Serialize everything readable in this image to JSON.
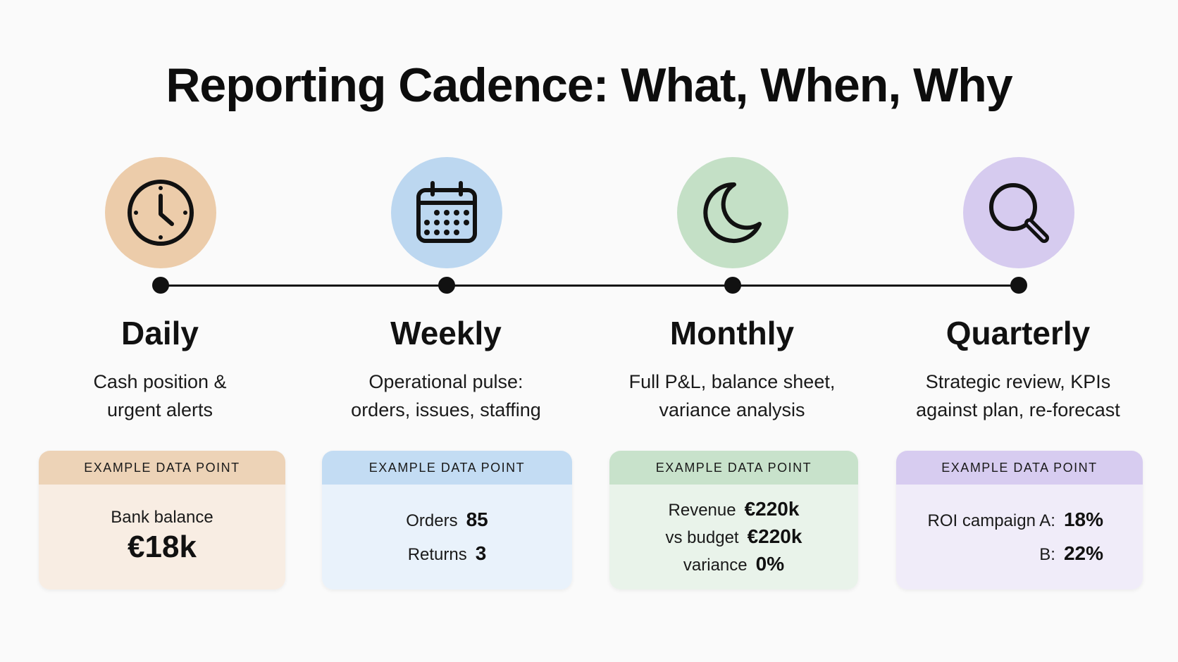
{
  "title": "Reporting Cadence: What, When, Why",
  "colors": {
    "daily_circle": "#ecccaa",
    "daily_head": "#edd3b7",
    "daily_body": "#f8ede3",
    "weekly_circle": "#bcd7f0",
    "weekly_head": "#c3dcf3",
    "weekly_body": "#e9f2fb",
    "monthly_circle": "#c4e0c6",
    "monthly_head": "#c8e2cb",
    "monthly_body": "#e9f3ea",
    "quarterly_circle": "#d6cbef",
    "quarterly_head": "#d7ccf0",
    "quarterly_body": "#f0ecf9",
    "line": "#111111"
  },
  "stages": {
    "daily": {
      "icon": "clock-icon",
      "heading": "Daily",
      "desc_line1": "Cash position &",
      "desc_line2": "urgent alerts",
      "card_header": "EXAMPLE DATA POINT",
      "label": "Bank balance",
      "value": "€18k"
    },
    "weekly": {
      "icon": "calendar-icon",
      "heading": "Weekly",
      "desc_line1": "Operational pulse:",
      "desc_line2": "orders, issues, staffing",
      "card_header": "EXAMPLE DATA POINT",
      "orders_label": "Orders",
      "orders_value": "85",
      "returns_label": "Returns",
      "returns_value": "3"
    },
    "monthly": {
      "icon": "moon-icon",
      "heading": "Monthly",
      "desc_line1": "Full P&L, balance sheet,",
      "desc_line2": "variance analysis",
      "card_header": "EXAMPLE DATA POINT",
      "revenue_label": "Revenue",
      "revenue_value": "€220k",
      "budget_label": "vs budget",
      "budget_value": "€220k",
      "variance_label": "variance",
      "variance_value": "0%"
    },
    "quarterly": {
      "icon": "magnifier-icon",
      "heading": "Quarterly",
      "desc_line1": "Strategic review, KPIs",
      "desc_line2": "against plan, re-forecast",
      "card_header": "EXAMPLE DATA POINT",
      "roi_a_label": "ROI campaign A:",
      "roi_a_value": "18%",
      "roi_b_label": "B:",
      "roi_b_value": "22%"
    }
  }
}
